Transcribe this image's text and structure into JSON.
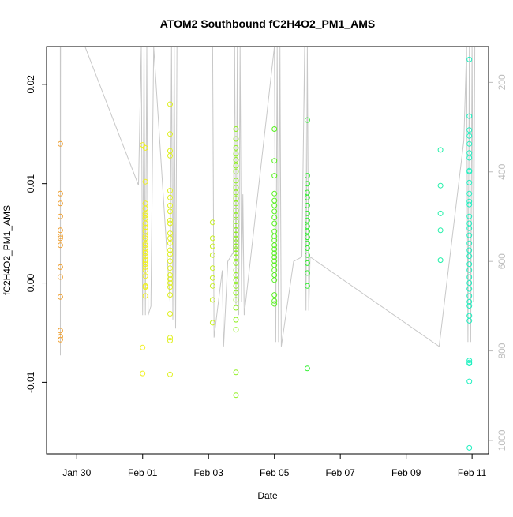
{
  "chart_data": {
    "type": "scatter",
    "title": "ATOM2 Southbound fC2H4O2_PM1_AMS",
    "xlabel": "Date",
    "ylabel": "fC2H4O2_PM1_AMS",
    "x_unit": "date",
    "xlim": [
      "2017-01-29 02:00",
      "2017-02-11 12:00"
    ],
    "ylim": [
      -0.0172,
      0.0238
    ],
    "x_ticks": [
      {
        "value": "2017-01-30",
        "label": "Jan 30"
      },
      {
        "value": "2017-02-01",
        "label": "Feb 01"
      },
      {
        "value": "2017-02-03",
        "label": "Feb 03"
      },
      {
        "value": "2017-02-05",
        "label": "Feb 05"
      },
      {
        "value": "2017-02-07",
        "label": "Feb 07"
      },
      {
        "value": "2017-02-09",
        "label": "Feb 09"
      },
      {
        "value": "2017-02-11",
        "label": "Feb 11"
      }
    ],
    "y_ticks": [
      {
        "value": -0.01,
        "label": "-0.01"
      },
      {
        "value": 0.0,
        "label": "0.00"
      },
      {
        "value": 0.01,
        "label": "0.01"
      },
      {
        "value": 0.02,
        "label": "0.02"
      }
    ],
    "right_axis": {
      "label": "",
      "ticks": [
        200,
        400,
        600,
        800,
        1000
      ],
      "range_top_to_bottom": [
        120,
        1030
      ],
      "color": "#bdbdbd"
    },
    "grid": false,
    "legend": "none",
    "marker": "open circle",
    "altitude_trace": {
      "color": "#c8c8c8",
      "points": [
        [
          "2017-01-29 12:00",
          120
        ],
        [
          "2017-01-29 12:05",
          810
        ],
        [
          "2017-01-29 12:10",
          120
        ],
        [
          "2017-01-30 06:00",
          120
        ],
        [
          "2017-01-31 21:00",
          430
        ],
        [
          "2017-01-31 23:00",
          120
        ],
        [
          "2017-02-01 00:00",
          720
        ],
        [
          "2017-02-01 01:00",
          120
        ],
        [
          "2017-02-01 02:00",
          720
        ],
        [
          "2017-02-01 03:00",
          120
        ],
        [
          "2017-02-01 04:00",
          720
        ],
        [
          "2017-02-01 06:00",
          700
        ],
        [
          "2017-02-01 08:00",
          120
        ],
        [
          "2017-02-01 20:00",
          690
        ],
        [
          "2017-02-01 21:00",
          120
        ],
        [
          "2017-02-01 22:00",
          730
        ],
        [
          "2017-02-01 23:00",
          120
        ],
        [
          "2017-02-02 00:00",
          750
        ],
        [
          "2017-02-02 01:00",
          120
        ],
        [
          "2017-02-03 03:00",
          120
        ],
        [
          "2017-02-03 04:00",
          770
        ],
        [
          "2017-02-03 10:00",
          620
        ],
        [
          "2017-02-03 11:00",
          790
        ],
        [
          "2017-02-03 14:00",
          600
        ],
        [
          "2017-02-03 18:00",
          580
        ],
        [
          "2017-02-03 19:00",
          120
        ],
        [
          "2017-02-03 20:00",
          700
        ],
        [
          "2017-02-03 21:00",
          120
        ],
        [
          "2017-02-03 22:00",
          720
        ],
        [
          "2017-02-03 23:00",
          120
        ],
        [
          "2017-02-04 00:00",
          690
        ],
        [
          "2017-02-04 01:00",
          450
        ],
        [
          "2017-02-04 02:00",
          720
        ],
        [
          "2017-02-05 00:00",
          120
        ],
        [
          "2017-02-05 01:00",
          780
        ],
        [
          "2017-02-05 02:00",
          120
        ],
        [
          "2017-02-05 03:00",
          780
        ],
        [
          "2017-02-05 04:00",
          120
        ],
        [
          "2017-02-05 05:00",
          790
        ],
        [
          "2017-02-05 14:00",
          600
        ],
        [
          "2017-02-05 20:00",
          590
        ],
        [
          "2017-02-05 22:00",
          120
        ],
        [
          "2017-02-05 23:00",
          710
        ],
        [
          "2017-02-06 00:00",
          120
        ],
        [
          "2017-02-06 01:00",
          710
        ],
        [
          "2017-02-06 02:00",
          590
        ],
        [
          "2017-02-10 00:00",
          790
        ],
        [
          "2017-02-10 18:00",
          330
        ],
        [
          "2017-02-10 20:00",
          120
        ],
        [
          "2017-02-10 21:00",
          780
        ],
        [
          "2017-02-10 22:00",
          120
        ],
        [
          "2017-02-10 23:00",
          780
        ],
        [
          "2017-02-11 00:00",
          120
        ],
        [
          "2017-02-11 01:00",
          690
        ],
        [
          "2017-02-11 02:00",
          120
        ]
      ]
    },
    "series": [
      {
        "color": "#f0a030",
        "x": [
          "2017-01-29 12:00",
          "2017-01-29 12:00",
          "2017-01-29 12:00",
          "2017-01-29 12:00",
          "2017-01-29 12:00",
          "2017-01-29 12:00",
          "2017-01-29 12:00",
          "2017-01-29 12:00",
          "2017-01-29 12:00",
          "2017-01-29 12:00",
          "2017-01-29 12:00",
          "2017-01-29 12:00",
          "2017-01-29 12:00",
          "2017-01-29 12:00"
        ],
        "y": [
          0.014,
          0.009,
          0.008,
          0.0067,
          0.0053,
          0.0047,
          0.0038,
          0.0016,
          0.0006,
          -0.0014,
          -0.0048,
          -0.0054,
          -0.0057,
          0.0045
        ]
      },
      {
        "color": "#f0f020",
        "x": [
          "2017-02-01 00:00",
          "2017-02-01 00:00",
          "2017-02-01 00:00",
          "2017-02-01 02:00",
          "2017-02-01 02:00",
          "2017-02-01 02:00",
          "2017-02-01 02:00",
          "2017-02-01 02:00",
          "2017-02-01 02:00",
          "2017-02-01 02:00",
          "2017-02-01 02:00",
          "2017-02-01 02:00",
          "2017-02-01 02:00",
          "2017-02-01 02:00",
          "2017-02-01 02:00",
          "2017-02-01 02:00",
          "2017-02-01 02:00",
          "2017-02-01 02:00",
          "2017-02-01 02:00",
          "2017-02-01 02:00",
          "2017-02-01 02:00",
          "2017-02-01 02:00",
          "2017-02-01 02:00",
          "2017-02-01 02:00",
          "2017-02-01 02:00",
          "2017-02-01 02:00",
          "2017-02-01 02:00",
          "2017-02-01 02:00",
          "2017-02-01 02:00",
          "2017-02-01 02:00"
        ],
        "y": [
          -0.0065,
          -0.0091,
          0.0139,
          0.0136,
          0.0102,
          0.008,
          0.0075,
          0.007,
          0.0068,
          0.0065,
          0.006,
          0.0056,
          0.0052,
          0.0047,
          0.0045,
          0.004,
          0.0038,
          0.0035,
          0.0032,
          0.003,
          0.0027,
          0.0023,
          0.0021,
          0.0019,
          0.0016,
          0.0013,
          0.0007,
          -0.0003,
          -0.0004,
          -0.0013
        ]
      },
      {
        "color": "#e0f020",
        "x": [
          "2017-02-01 20:00",
          "2017-02-01 20:00",
          "2017-02-01 20:00",
          "2017-02-01 20:00",
          "2017-02-01 20:00",
          "2017-02-01 20:00",
          "2017-02-01 20:00",
          "2017-02-01 20:00",
          "2017-02-01 20:00",
          "2017-02-01 20:00",
          "2017-02-01 20:00",
          "2017-02-01 20:00",
          "2017-02-01 20:00",
          "2017-02-01 20:00",
          "2017-02-01 20:00",
          "2017-02-01 20:00",
          "2017-02-01 20:00",
          "2017-02-01 20:00",
          "2017-02-01 20:00",
          "2017-02-01 20:00",
          "2017-02-01 20:00",
          "2017-02-01 20:00",
          "2017-02-01 20:00",
          "2017-02-01 20:00",
          "2017-02-01 20:00",
          "2017-02-01 20:00"
        ],
        "y": [
          0.018,
          0.015,
          0.0133,
          0.0128,
          0.0093,
          0.0086,
          0.0078,
          0.0072,
          0.0063,
          0.006,
          0.005,
          0.0045,
          0.004,
          0.0033,
          0.0029,
          0.0022,
          0.0015,
          0.0008,
          0.0004,
          0.0,
          -0.0004,
          -0.0012,
          -0.0031,
          -0.0055,
          -0.0058,
          -0.0092
        ]
      },
      {
        "color": "#c8f020",
        "x": [
          "2017-02-03 03:00",
          "2017-02-03 03:00",
          "2017-02-03 03:00",
          "2017-02-03 03:00",
          "2017-02-03 03:00",
          "2017-02-03 03:00",
          "2017-02-03 03:00",
          "2017-02-03 03:00",
          "2017-02-03 03:00"
        ],
        "y": [
          0.0061,
          0.0045,
          0.0037,
          0.0015,
          0.0005,
          -0.0003,
          -0.0017,
          -0.004,
          0.0028
        ]
      },
      {
        "color": "#90f020",
        "x": [
          "2017-02-03 20:00",
          "2017-02-03 20:00",
          "2017-02-03 20:00",
          "2017-02-03 20:00",
          "2017-02-03 20:00",
          "2017-02-03 20:00",
          "2017-02-03 20:00",
          "2017-02-03 20:00",
          "2017-02-03 20:00",
          "2017-02-03 20:00",
          "2017-02-03 20:00",
          "2017-02-03 20:00",
          "2017-02-03 20:00",
          "2017-02-03 20:00",
          "2017-02-03 20:00",
          "2017-02-03 20:00",
          "2017-02-03 20:00",
          "2017-02-03 20:00",
          "2017-02-03 20:00",
          "2017-02-03 20:00",
          "2017-02-03 20:00",
          "2017-02-03 20:00",
          "2017-02-03 20:00",
          "2017-02-03 20:00",
          "2017-02-03 20:00",
          "2017-02-03 20:00",
          "2017-02-03 20:00",
          "2017-02-03 20:00",
          "2017-02-03 20:00",
          "2017-02-03 20:00",
          "2017-02-03 20:00",
          "2017-02-03 20:00",
          "2017-02-03 20:00",
          "2017-02-03 20:00",
          "2017-02-03 20:00",
          "2017-02-03 20:00"
        ],
        "y": [
          0.0155,
          0.0145,
          0.0136,
          0.013,
          0.0124,
          0.0118,
          0.0112,
          0.0103,
          0.0096,
          0.0091,
          0.0085,
          0.008,
          0.0073,
          0.0068,
          0.0062,
          0.0058,
          0.0053,
          0.0049,
          0.0044,
          0.0041,
          0.0037,
          0.0034,
          0.003,
          0.0026,
          0.002,
          0.0013,
          0.0008,
          0.0003,
          -0.0003,
          -0.001,
          -0.0017,
          -0.0025,
          -0.0037,
          -0.0047,
          -0.009,
          -0.0113
        ]
      },
      {
        "color": "#58f020",
        "x": [
          "2017-02-05 00:00",
          "2017-02-05 00:00",
          "2017-02-05 00:00",
          "2017-02-05 00:00",
          "2017-02-05 00:00",
          "2017-02-05 00:00",
          "2017-02-05 00:00",
          "2017-02-05 00:00",
          "2017-02-05 00:00",
          "2017-02-05 00:00",
          "2017-02-05 00:00",
          "2017-02-05 00:00",
          "2017-02-05 00:00",
          "2017-02-05 00:00",
          "2017-02-05 00:00",
          "2017-02-05 00:00",
          "2017-02-05 00:00",
          "2017-02-05 00:00",
          "2017-02-05 00:00",
          "2017-02-05 00:00",
          "2017-02-05 00:00",
          "2017-02-05 00:00",
          "2017-02-05 00:00",
          "2017-02-05 00:00"
        ],
        "y": [
          0.0155,
          0.0123,
          0.0108,
          0.009,
          0.0083,
          0.0078,
          0.0072,
          0.0066,
          0.006,
          0.0052,
          0.0047,
          0.0043,
          0.0038,
          0.0034,
          0.003,
          0.0026,
          0.0022,
          0.0018,
          0.0013,
          0.0008,
          0.0003,
          -0.0012,
          -0.0018,
          -0.0021
        ]
      },
      {
        "color": "#30f030",
        "x": [
          "2017-02-06 00:00",
          "2017-02-06 00:00",
          "2017-02-06 00:00",
          "2017-02-06 00:00",
          "2017-02-06 00:00",
          "2017-02-06 00:00",
          "2017-02-06 00:00",
          "2017-02-06 00:00",
          "2017-02-06 00:00",
          "2017-02-06 00:00",
          "2017-02-06 00:00",
          "2017-02-06 00:00",
          "2017-02-06 00:00",
          "2017-02-06 00:00",
          "2017-02-06 00:00",
          "2017-02-06 00:00",
          "2017-02-06 00:00",
          "2017-02-06 00:00"
        ],
        "y": [
          0.0164,
          0.0108,
          0.01,
          0.0091,
          0.0086,
          0.0078,
          0.007,
          0.0063,
          0.0057,
          0.0052,
          0.0046,
          0.004,
          0.0035,
          0.0028,
          0.002,
          0.001,
          -0.0003,
          -0.0086
        ]
      },
      {
        "color": "#20f0a8",
        "x": [
          "2017-02-10 01:00",
          "2017-02-10 01:00",
          "2017-02-10 01:00",
          "2017-02-10 01:00",
          "2017-02-10 01:00"
        ],
        "y": [
          0.0134,
          0.0098,
          0.007,
          0.0053,
          0.0023
        ]
      },
      {
        "color": "#20f0c0",
        "x": [
          "2017-02-10 22:00",
          "2017-02-10 22:00",
          "2017-02-10 22:00",
          "2017-02-10 22:00",
          "2017-02-10 22:00",
          "2017-02-10 22:00",
          "2017-02-10 22:00",
          "2017-02-10 22:00",
          "2017-02-10 22:00",
          "2017-02-10 22:00",
          "2017-02-10 22:00",
          "2017-02-10 22:00",
          "2017-02-10 22:00",
          "2017-02-10 22:00",
          "2017-02-10 22:00",
          "2017-02-10 22:00",
          "2017-02-10 22:00",
          "2017-02-10 22:00",
          "2017-02-10 22:00",
          "2017-02-10 22:00",
          "2017-02-10 22:00",
          "2017-02-10 22:00",
          "2017-02-10 22:00",
          "2017-02-10 22:00",
          "2017-02-10 22:00",
          "2017-02-10 22:00",
          "2017-02-10 22:00",
          "2017-02-10 22:00",
          "2017-02-10 22:00",
          "2017-02-10 22:00",
          "2017-02-10 22:00",
          "2017-02-10 22:00",
          "2017-02-10 22:00",
          "2017-02-10 22:00",
          "2017-02-10 22:00"
        ],
        "y": [
          0.0225,
          0.0168,
          0.0154,
          0.0148,
          0.014,
          0.0131,
          0.0126,
          0.0113,
          0.0112,
          0.0101,
          0.009,
          0.0082,
          0.0079,
          0.0067,
          0.006,
          0.0055,
          0.0048,
          0.004,
          0.0033,
          0.0027,
          0.0019,
          0.0013,
          0.0006,
          0.0,
          -0.0006,
          -0.0013,
          -0.0019,
          -0.0023,
          -0.0033,
          -0.0038,
          -0.0078,
          -0.0081,
          -0.008,
          -0.0099,
          -0.0166
        ]
      }
    ]
  }
}
